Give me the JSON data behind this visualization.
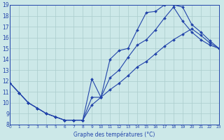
{
  "title": "Graphe des températures (°C)",
  "bg_color": "#cce8e8",
  "grid_color": "#aacccc",
  "line_color": "#2244aa",
  "xlim": [
    0,
    23
  ],
  "ylim": [
    8,
    19
  ],
  "xticks": [
    0,
    1,
    2,
    3,
    4,
    5,
    6,
    7,
    8,
    9,
    10,
    11,
    12,
    13,
    14,
    15,
    16,
    17,
    18,
    19,
    20,
    21,
    22,
    23
  ],
  "yticks": [
    8,
    9,
    10,
    11,
    12,
    13,
    14,
    15,
    16,
    17,
    18,
    19
  ],
  "line1_x": [
    0,
    1,
    2,
    3,
    4,
    5,
    6,
    7,
    8,
    9,
    10,
    11,
    12,
    13,
    14,
    15,
    16,
    17,
    18,
    19,
    20,
    21,
    22,
    23
  ],
  "line1_y": [
    11.8,
    10.9,
    10.0,
    9.5,
    9.0,
    8.7,
    8.4,
    8.4,
    8.4,
    12.2,
    10.5,
    14.0,
    14.8,
    15.0,
    16.7,
    18.3,
    18.4,
    19.0,
    19.0,
    18.8,
    17.2,
    16.5,
    15.7,
    15.0
  ],
  "line2_x": [
    0,
    1,
    2,
    3,
    4,
    5,
    6,
    7,
    8,
    9,
    10,
    11,
    12,
    13,
    14,
    15,
    16,
    17,
    18,
    19,
    20,
    21,
    22,
    23
  ],
  "line2_y": [
    11.8,
    10.9,
    10.0,
    9.5,
    9.0,
    8.7,
    8.4,
    8.4,
    8.4,
    10.5,
    10.5,
    12.3,
    13.0,
    14.2,
    15.3,
    15.8,
    16.7,
    17.8,
    18.8,
    17.5,
    16.5,
    15.8,
    15.3,
    15.0
  ],
  "line3_x": [
    0,
    1,
    2,
    3,
    4,
    5,
    6,
    7,
    8,
    9,
    10,
    11,
    12,
    13,
    14,
    15,
    16,
    17,
    18,
    19,
    20,
    21,
    22,
    23
  ],
  "line3_y": [
    11.8,
    10.9,
    10.0,
    9.5,
    9.0,
    8.7,
    8.4,
    8.4,
    8.4,
    9.8,
    10.5,
    11.2,
    11.8,
    12.5,
    13.3,
    13.8,
    14.5,
    15.2,
    15.8,
    16.3,
    16.8,
    16.2,
    15.5,
    15.0
  ]
}
